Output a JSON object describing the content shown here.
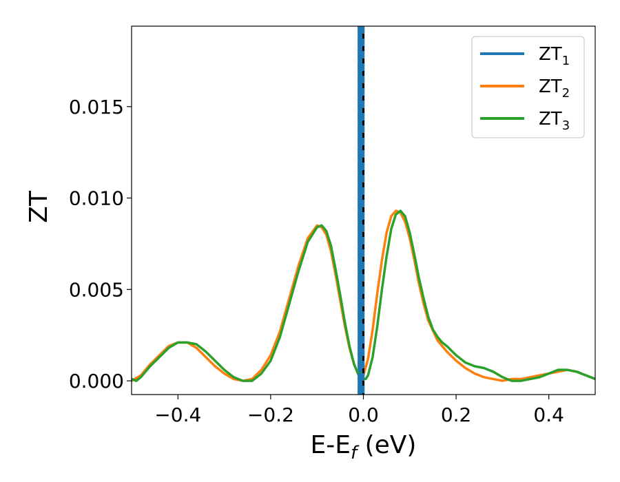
{
  "chart_data": {
    "type": "line",
    "title": "",
    "xlabel": {
      "main": "E-E",
      "sub": "f",
      "suffix": " (eV)"
    },
    "ylabel": "ZT",
    "xlim": [
      -0.5,
      0.5
    ],
    "ylim": [
      -0.00075,
      0.0194
    ],
    "xticks": [
      -0.4,
      -0.2,
      0.0,
      0.2,
      0.4
    ],
    "xtick_labels": [
      "−0.4",
      "−0.2",
      "0.0",
      "0.2",
      "0.4"
    ],
    "yticks": [
      0.0,
      0.005,
      0.01,
      0.015
    ],
    "ytick_labels": [
      "0.000",
      "0.005",
      "0.010",
      "0.015"
    ],
    "grid": false,
    "legend_position": "top-right",
    "vertical_line_x": 0.0,
    "series": [
      {
        "name": "ZT",
        "sub": "1",
        "color": "#1f77b4",
        "style": "vertical-dashed",
        "x": [
          -0.005,
          -0.005
        ],
        "y": [
          -0.00075,
          0.0194
        ]
      },
      {
        "name": "ZT",
        "sub": "2",
        "color": "#ff7f0e",
        "style": "solid",
        "x": [
          -0.5,
          -0.48,
          -0.46,
          -0.44,
          -0.42,
          -0.4,
          -0.38,
          -0.36,
          -0.34,
          -0.32,
          -0.3,
          -0.28,
          -0.26,
          -0.24,
          -0.22,
          -0.2,
          -0.18,
          -0.16,
          -0.14,
          -0.12,
          -0.1,
          -0.09,
          -0.08,
          -0.07,
          -0.06,
          -0.05,
          -0.04,
          -0.03,
          -0.02,
          -0.01,
          -0.005,
          0.0,
          0.01,
          0.02,
          0.03,
          0.04,
          0.05,
          0.06,
          0.07,
          0.08,
          0.09,
          0.1,
          0.11,
          0.12,
          0.13,
          0.14,
          0.16,
          0.18,
          0.2,
          0.22,
          0.24,
          0.26,
          0.28,
          0.3,
          0.32,
          0.34,
          0.36,
          0.38,
          0.4,
          0.42,
          0.44,
          0.46,
          0.48,
          0.5
        ],
        "y": [
          0.0,
          0.0003,
          0.0009,
          0.0014,
          0.0019,
          0.0021,
          0.0021,
          0.0018,
          0.0013,
          0.0008,
          0.0004,
          0.0001,
          0.0,
          0.0001,
          0.0006,
          0.0014,
          0.0027,
          0.0045,
          0.0063,
          0.0078,
          0.0085,
          0.0084,
          0.008,
          0.0071,
          0.0058,
          0.0044,
          0.003,
          0.0018,
          0.0009,
          0.0003,
          0.0002,
          0.0003,
          0.0012,
          0.0028,
          0.0048,
          0.0066,
          0.0081,
          0.009,
          0.0093,
          0.0092,
          0.0087,
          0.0078,
          0.0066,
          0.0053,
          0.0042,
          0.0033,
          0.0022,
          0.0016,
          0.0011,
          0.0007,
          0.0004,
          0.0002,
          0.0001,
          0.0,
          0.0001,
          0.0001,
          0.0002,
          0.0003,
          0.0004,
          0.0005,
          0.0006,
          0.0005,
          0.0003,
          0.0001
        ]
      },
      {
        "name": "ZT",
        "sub": "3",
        "color": "#2ca02c",
        "style": "solid",
        "x": [
          -0.5,
          -0.49,
          -0.48,
          -0.46,
          -0.44,
          -0.42,
          -0.4,
          -0.38,
          -0.36,
          -0.34,
          -0.32,
          -0.3,
          -0.28,
          -0.26,
          -0.24,
          -0.22,
          -0.2,
          -0.18,
          -0.16,
          -0.14,
          -0.12,
          -0.1,
          -0.09,
          -0.08,
          -0.07,
          -0.06,
          -0.05,
          -0.04,
          -0.03,
          -0.02,
          -0.01,
          -0.005,
          0.0,
          0.005,
          0.01,
          0.02,
          0.03,
          0.04,
          0.05,
          0.06,
          0.07,
          0.08,
          0.09,
          0.1,
          0.11,
          0.12,
          0.13,
          0.14,
          0.15,
          0.16,
          0.17,
          0.18,
          0.2,
          0.22,
          0.24,
          0.26,
          0.28,
          0.3,
          0.32,
          0.34,
          0.36,
          0.38,
          0.4,
          0.42,
          0.44,
          0.46,
          0.48,
          0.5
        ],
        "y": [
          0.0001,
          0.0,
          0.0002,
          0.0008,
          0.0013,
          0.0018,
          0.0021,
          0.0021,
          0.002,
          0.0016,
          0.0011,
          0.0006,
          0.0002,
          0.0,
          0.0,
          0.0004,
          0.0011,
          0.0024,
          0.0042,
          0.006,
          0.0076,
          0.0084,
          0.0085,
          0.0082,
          0.0074,
          0.0061,
          0.0047,
          0.0032,
          0.0019,
          0.0009,
          0.0003,
          0.0004,
          0.0001,
          0.0001,
          0.0003,
          0.0013,
          0.003,
          0.005,
          0.0068,
          0.0083,
          0.0091,
          0.0093,
          0.009,
          0.0081,
          0.0069,
          0.0056,
          0.0045,
          0.0035,
          0.0028,
          0.0024,
          0.0021,
          0.0019,
          0.0014,
          0.001,
          0.0008,
          0.0007,
          0.0005,
          0.0002,
          0.0,
          0.0,
          0.0001,
          0.0002,
          0.0004,
          0.0006,
          0.0006,
          0.0005,
          0.0003,
          0.0001
        ]
      }
    ]
  }
}
